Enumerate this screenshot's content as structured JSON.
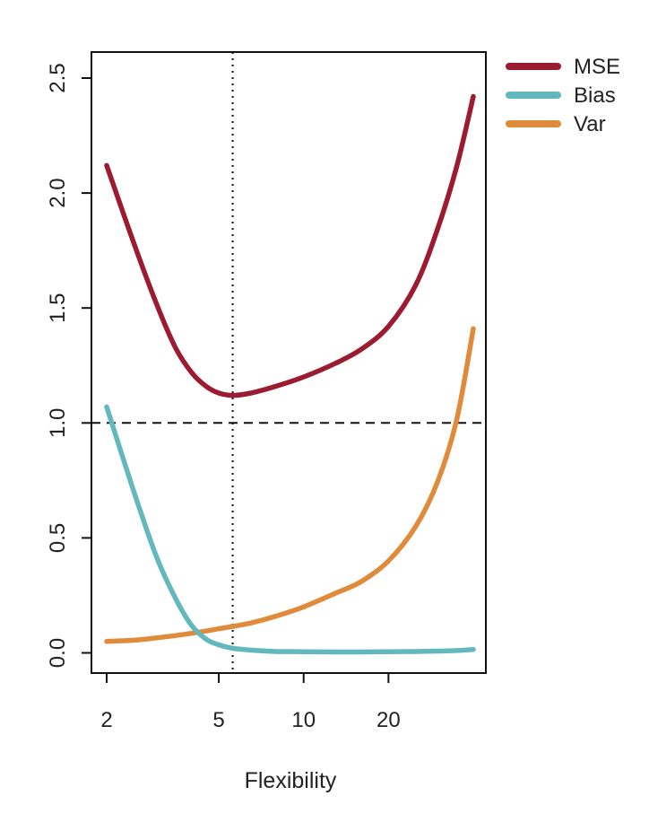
{
  "chart_data": {
    "type": "line",
    "title": "",
    "xlabel": "Flexibility",
    "ylabel": "",
    "x_scale": "log",
    "xlim": [
      1.87,
      43.4
    ],
    "ylim": [
      -0.1,
      2.6
    ],
    "x_ticks": [
      2,
      5,
      10,
      20
    ],
    "x_tick_labels": [
      "2",
      "5",
      "10",
      "20"
    ],
    "y_ticks": [
      0.0,
      0.5,
      1.0,
      1.5,
      2.0,
      2.5
    ],
    "y_tick_labels": [
      "0.0",
      "0.5",
      "1.0",
      "1.5",
      "2.0",
      "2.5"
    ],
    "grid": false,
    "legend_position": "outside-top-right",
    "hline": 1.0,
    "vline": 5.6,
    "series": [
      {
        "name": "MSE",
        "color": "#9b1b30",
        "x": [
          2,
          2.5,
          3,
          3.5,
          4,
          4.5,
          5,
          5.6,
          6.5,
          8,
          10,
          13,
          16,
          20,
          25,
          30,
          35,
          40
        ],
        "y": [
          2.12,
          1.78,
          1.52,
          1.33,
          1.22,
          1.16,
          1.13,
          1.12,
          1.13,
          1.16,
          1.2,
          1.26,
          1.32,
          1.42,
          1.6,
          1.85,
          2.12,
          2.42
        ]
      },
      {
        "name": "Bias",
        "color": "#63b8be",
        "x": [
          2,
          2.5,
          3,
          3.5,
          4,
          4.5,
          5,
          5.6,
          6.5,
          8,
          10,
          13,
          16,
          20,
          25,
          30,
          35,
          40
        ],
        "y": [
          1.07,
          0.7,
          0.42,
          0.24,
          0.12,
          0.06,
          0.035,
          0.02,
          0.012,
          0.006,
          0.005,
          0.004,
          0.004,
          0.005,
          0.006,
          0.008,
          0.01,
          0.015
        ]
      },
      {
        "name": "Var",
        "color": "#e08a3c",
        "x": [
          2,
          2.5,
          3,
          3.5,
          4,
          4.5,
          5,
          5.6,
          6.5,
          8,
          10,
          13,
          16,
          20,
          25,
          30,
          35,
          40
        ],
        "y": [
          0.05,
          0.055,
          0.065,
          0.075,
          0.085,
          0.095,
          0.105,
          0.115,
          0.13,
          0.16,
          0.2,
          0.26,
          0.31,
          0.4,
          0.55,
          0.75,
          1.02,
          1.41
        ]
      }
    ]
  }
}
